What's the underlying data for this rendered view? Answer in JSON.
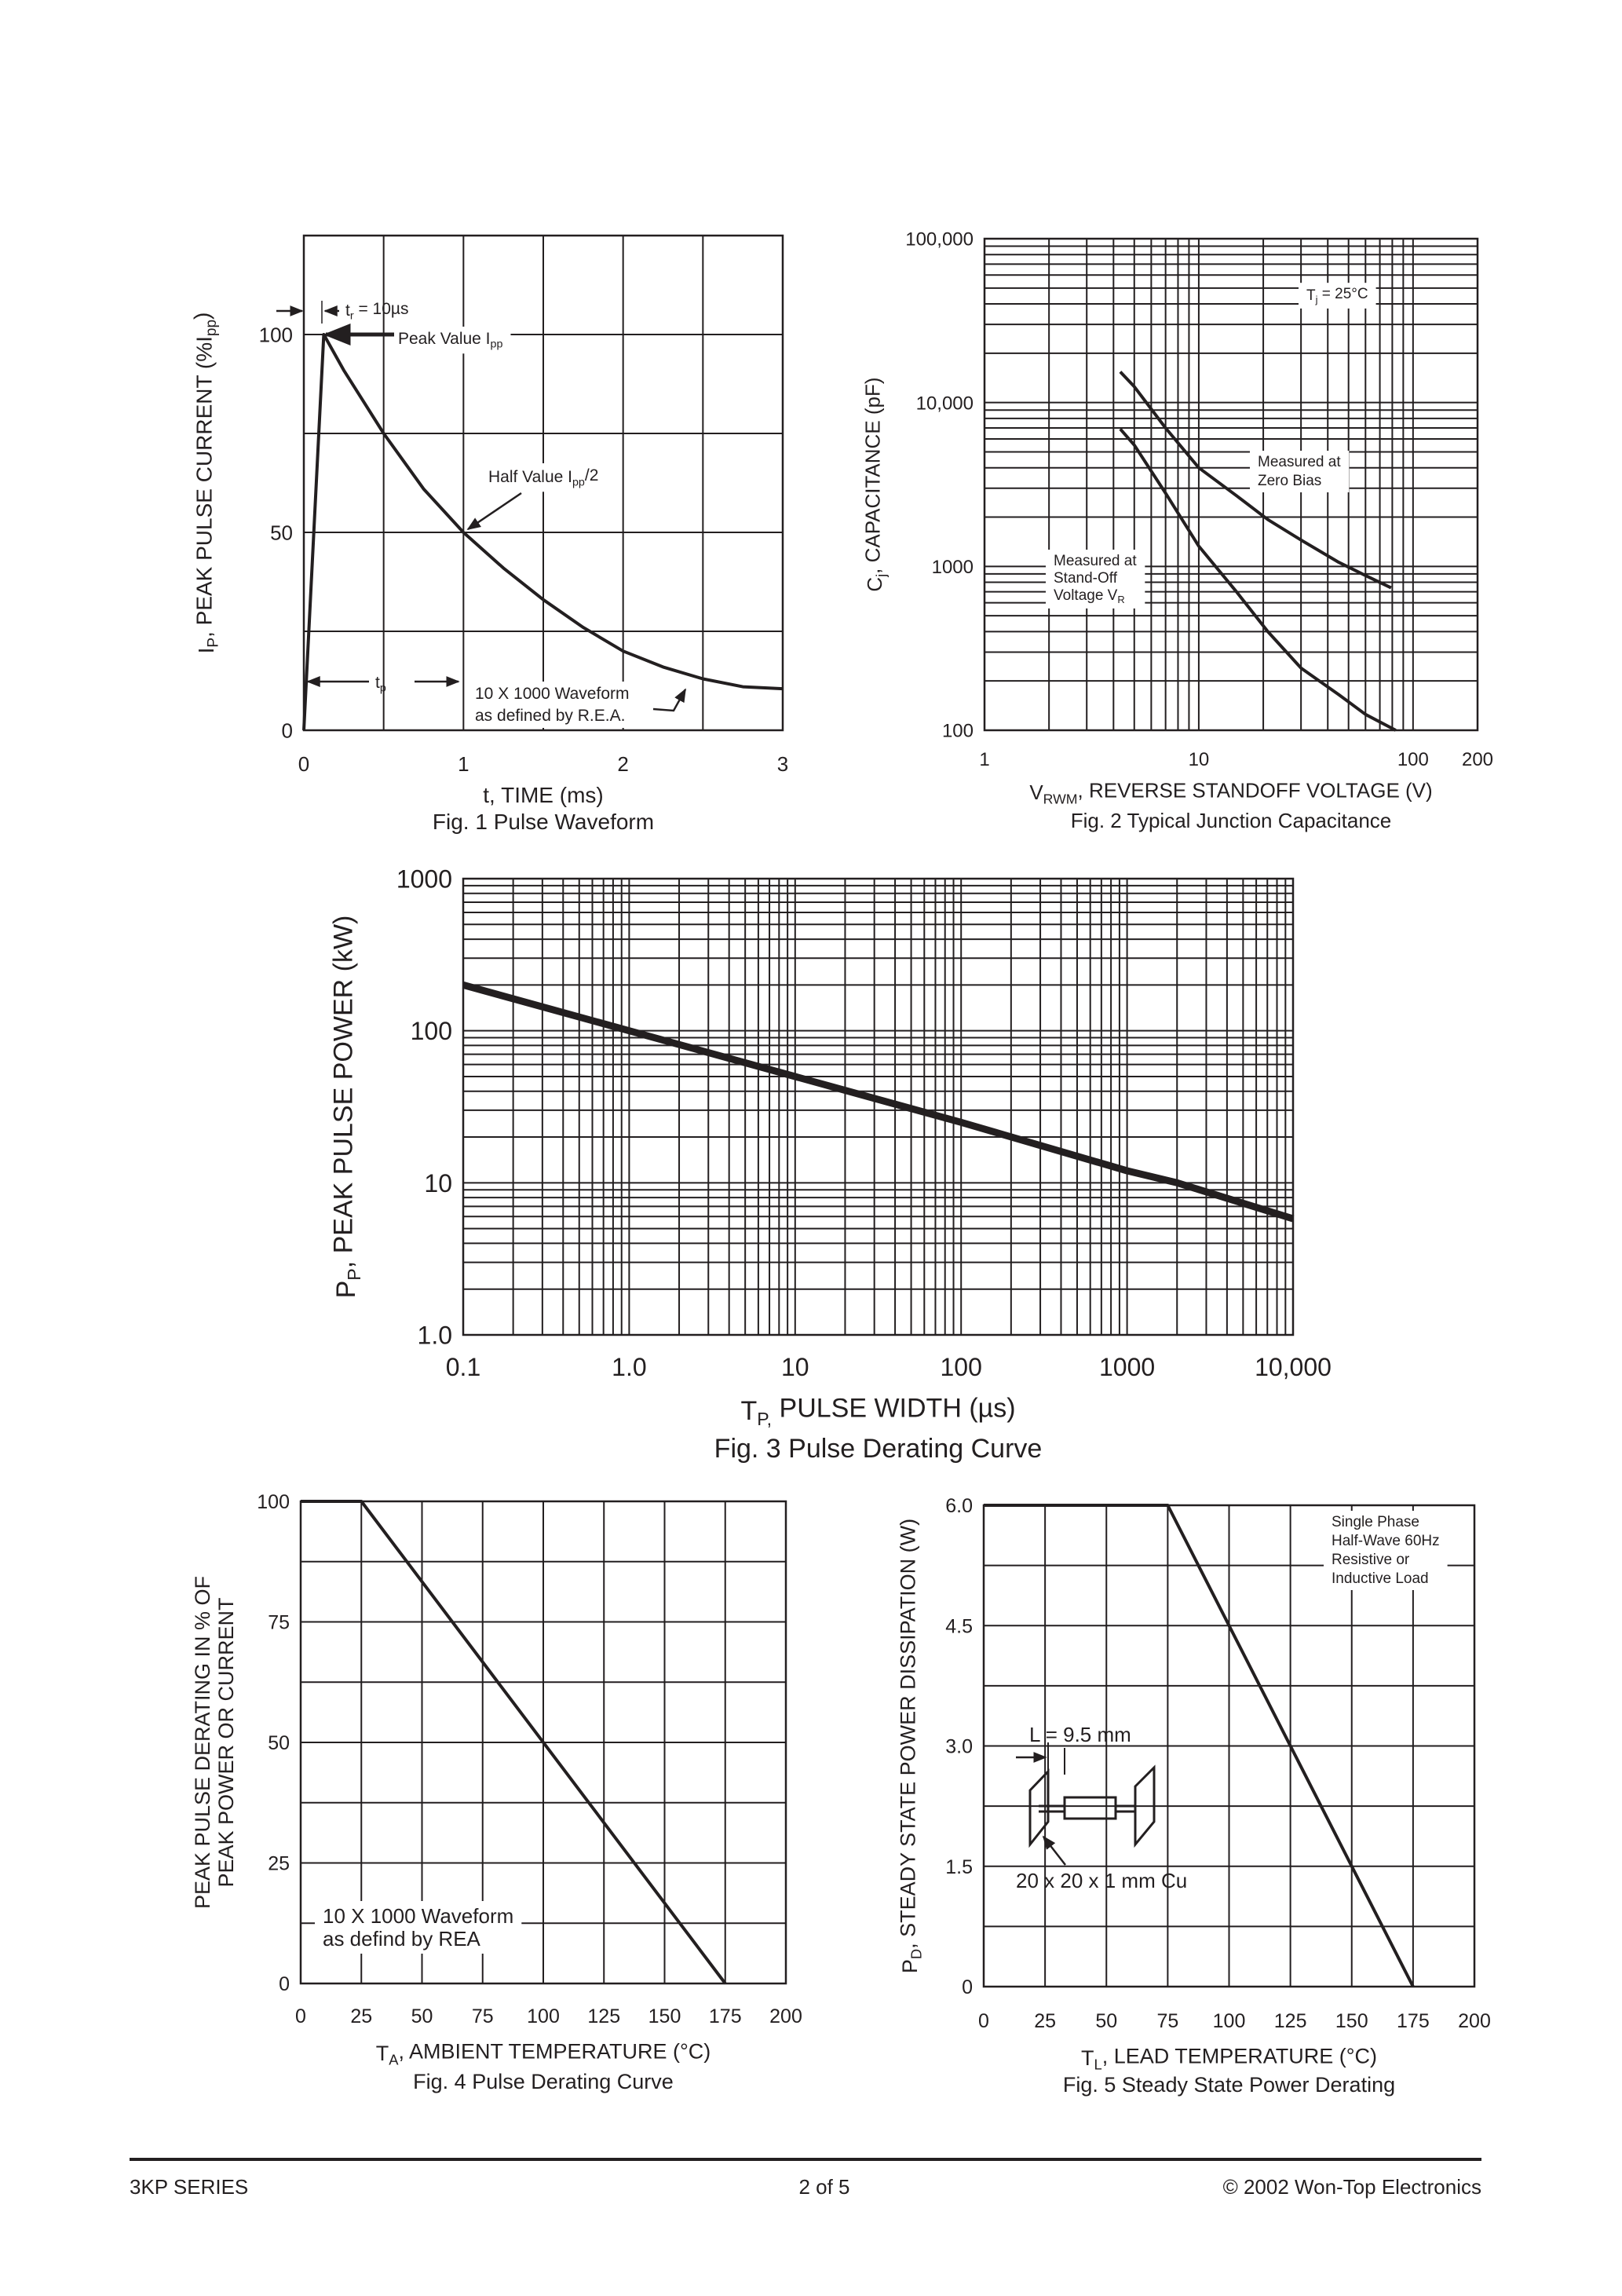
{
  "footer": {
    "series": "3KP SERIES",
    "page": "2  of  5",
    "copyright": "© 2002 Won-Top Electronics"
  },
  "colors": {
    "ink": "#231f20",
    "background": "#ffffff"
  },
  "chart_data": [
    {
      "id": "fig1",
      "type": "line",
      "caption": "Fig. 1  Pulse Waveform",
      "xlabel": [
        {
          "t": "t, TIME (ms)"
        }
      ],
      "ylabel": [
        [
          {
            "t": "I"
          },
          {
            "t": "P",
            "sub": true
          },
          {
            "t": ", PEAK PULSE CURRENT (%I"
          },
          {
            "t": "pp",
            "sub": true
          },
          {
            "t": ")"
          }
        ]
      ],
      "xscale": "linear",
      "yscale": "linear",
      "xlim": [
        0,
        3
      ],
      "ylim": [
        0,
        125
      ],
      "grid": true,
      "x_grid_step": 0.5,
      "y_grid_step": 25,
      "xticks": [
        0,
        1,
        2,
        3
      ],
      "xtick_labels": [
        "0",
        "1",
        "2",
        "3"
      ],
      "yticks": [
        0,
        50,
        100
      ],
      "ytick_labels": [
        "0",
        "50",
        "100"
      ],
      "series": [
        {
          "points": [
            [
              0,
              0
            ],
            [
              0.125,
              100
            ],
            [
              0.25,
              91
            ],
            [
              0.5,
              75
            ],
            [
              0.75,
              61
            ],
            [
              1,
              50
            ],
            [
              1.25,
              41
            ],
            [
              1.5,
              33
            ],
            [
              1.75,
              26
            ],
            [
              2,
              20
            ],
            [
              2.25,
              16
            ],
            [
              2.5,
              13
            ],
            [
              2.75,
              11
            ],
            [
              3,
              10.5
            ]
          ]
        }
      ],
      "annotations": [
        {
          "id": "tr",
          "lines": [
            [
              {
                "t": "t"
              },
              {
                "t": "r",
                "sub": true
              },
              {
                "t": " = 10µs"
              }
            ]
          ]
        },
        {
          "id": "peak",
          "lines": [
            [
              {
                "t": "Peak Value I"
              },
              {
                "t": "pp",
                "sub": true
              }
            ]
          ]
        },
        {
          "id": "half",
          "lines": [
            [
              {
                "t": "Half Value I"
              },
              {
                "t": "pp",
                "sub": true
              },
              {
                "t": "/2"
              }
            ]
          ]
        },
        {
          "id": "tp",
          "lines": [
            [
              {
                "t": "t"
              },
              {
                "t": "p",
                "sub": true
              }
            ]
          ]
        },
        {
          "id": "waveform",
          "lines": [
            [
              {
                "t": "10 X 1000 Waveform"
              }
            ],
            [
              {
                "t": "as defined by R.E.A."
              }
            ]
          ]
        }
      ]
    },
    {
      "id": "fig2",
      "type": "line",
      "caption": "Fig. 2  Typical Junction Capacitance",
      "xlabel": [
        {
          "t": "V"
        },
        {
          "t": "RWM",
          "sub": true
        },
        {
          "t": ", REVERSE STANDOFF VOLTAGE (V)"
        }
      ],
      "ylabel": [
        [
          {
            "t": "C"
          },
          {
            "t": "j",
            "sub": true
          },
          {
            "t": ", CAPACITANCE (pF)"
          }
        ]
      ],
      "xscale": "log",
      "yscale": "log",
      "xlim": [
        1,
        200
      ],
      "ylim": [
        100,
        100000
      ],
      "grid": true,
      "xticks": [
        1,
        10,
        100,
        200
      ],
      "xtick_labels": [
        "1",
        "10",
        "100",
        "200"
      ],
      "yticks": [
        100,
        1000,
        10000,
        100000
      ],
      "ytick_labels": [
        "100",
        "1000",
        "10,000",
        "100,000"
      ],
      "series": [
        {
          "name": "Measured at Zero Bias",
          "points": [
            [
              4.3,
              15400
            ],
            [
              5,
              12500
            ],
            [
              7,
              7000
            ],
            [
              10,
              4000
            ],
            [
              15,
              2700
            ],
            [
              21,
              1930
            ],
            [
              30,
              1450
            ],
            [
              45,
              1060
            ],
            [
              60,
              880
            ],
            [
              79,
              740
            ]
          ]
        },
        {
          "name": "Measured at Stand-Off Voltage VR",
          "points": [
            [
              4.3,
              6900
            ],
            [
              5,
              5500
            ],
            [
              7,
              2800
            ],
            [
              10,
              1330
            ],
            [
              15,
              700
            ],
            [
              21,
              400
            ],
            [
              30,
              240
            ],
            [
              45,
              165
            ],
            [
              60,
              125
            ],
            [
              83,
              100
            ]
          ]
        }
      ],
      "annotations": [
        {
          "id": "tj",
          "lines": [
            [
              {
                "t": "T"
              },
              {
                "t": "j",
                "sub": true
              },
              {
                "t": " = 25°C"
              }
            ]
          ]
        },
        {
          "id": "zero",
          "lines": [
            [
              {
                "t": "Measured at"
              }
            ],
            [
              {
                "t": "Zero Bias"
              }
            ]
          ]
        },
        {
          "id": "standoff",
          "lines": [
            [
              {
                "t": "Measured at"
              }
            ],
            [
              {
                "t": "Stand-Off"
              }
            ],
            [
              {
                "t": "Voltage V"
              },
              {
                "t": "R",
                "sub": true
              }
            ]
          ]
        }
      ]
    },
    {
      "id": "fig3",
      "type": "line",
      "caption": "Fig. 3  Pulse Derating Curve",
      "xlabel": [
        {
          "t": "T"
        },
        {
          "t": "P,",
          "sub": true
        },
        {
          "t": " PULSE WIDTH (µs)"
        }
      ],
      "ylabel": [
        [
          {
            "t": "P"
          },
          {
            "t": "P",
            "sub": true
          },
          {
            "t": ", PEAK PULSE POWER (kW)"
          }
        ]
      ],
      "xscale": "log",
      "yscale": "log",
      "xlim": [
        0.1,
        10000
      ],
      "ylim": [
        1,
        1000
      ],
      "grid": true,
      "xticks": [
        0.1,
        1,
        10,
        100,
        1000,
        10000
      ],
      "xtick_labels": [
        "0.1",
        "1.0",
        "10",
        "100",
        "1000",
        "10,000"
      ],
      "yticks": [
        1,
        10,
        100,
        1000
      ],
      "ytick_labels": [
        "1.0",
        "10",
        "100",
        "1000"
      ],
      "series": [
        {
          "points": [
            [
              0.1,
              200
            ],
            [
              1,
              100
            ],
            [
              10,
              50
            ],
            [
              100,
              25
            ],
            [
              1000,
              12
            ],
            [
              2000,
              10
            ],
            [
              10000,
              5.8
            ]
          ]
        }
      ],
      "annotations": []
    },
    {
      "id": "fig4",
      "type": "line",
      "caption": "Fig. 4  Pulse Derating Curve",
      "xlabel": [
        {
          "t": "T"
        },
        {
          "t": "A",
          "sub": true
        },
        {
          "t": ", AMBIENT TEMPERATURE (°C)"
        }
      ],
      "ylabel": [
        [
          {
            "t": "PEAK PULSE DERATING IN % OF"
          }
        ],
        [
          {
            "t": "PEAK POWER OR CURRENT"
          }
        ]
      ],
      "xscale": "linear",
      "yscale": "linear",
      "xlim": [
        0,
        200
      ],
      "ylim": [
        0,
        100
      ],
      "grid": true,
      "x_grid_step": 25,
      "y_grid_step": 12.5,
      "xticks": [
        0,
        25,
        50,
        75,
        100,
        125,
        150,
        175,
        200
      ],
      "xtick_labels": [
        "0",
        "25",
        "50",
        "75",
        "100",
        "125",
        "150",
        "175",
        "200"
      ],
      "yticks": [
        0,
        25,
        50,
        75,
        100
      ],
      "ytick_labels": [
        "0",
        "25",
        "50",
        "75",
        "100"
      ],
      "series": [
        {
          "points": [
            [
              0,
              100
            ],
            [
              25,
              100
            ],
            [
              175,
              0
            ]
          ]
        }
      ],
      "annotations": [
        {
          "id": "waveform",
          "lines": [
            [
              {
                "t": "10 X 1000 Waveform"
              }
            ],
            [
              {
                "t": "as defind by REA"
              }
            ]
          ]
        }
      ]
    },
    {
      "id": "fig5",
      "type": "line",
      "caption": "Fig. 5  Steady State Power Derating",
      "xlabel": [
        {
          "t": "T"
        },
        {
          "t": "L",
          "sub": true
        },
        {
          "t": ", LEAD TEMPERATURE (°C)"
        }
      ],
      "ylabel": [
        [
          {
            "t": "P"
          },
          {
            "t": "D",
            "sub": true
          },
          {
            "t": ", STEADY STATE POWER DISSIPATION (W)"
          }
        ]
      ],
      "xscale": "linear",
      "yscale": "linear",
      "xlim": [
        0,
        200
      ],
      "ylim": [
        0,
        6
      ],
      "grid": true,
      "x_grid_step": 25,
      "y_grid_step": 0.75,
      "xticks": [
        0,
        25,
        50,
        75,
        100,
        125,
        150,
        175,
        200
      ],
      "xtick_labels": [
        "0",
        "25",
        "50",
        "75",
        "100",
        "125",
        "150",
        "175",
        "200"
      ],
      "yticks": [
        0,
        1.5,
        3,
        4.5,
        6
      ],
      "ytick_labels": [
        "0",
        "1.5",
        "3.0",
        "4.5",
        "6.0"
      ],
      "series": [
        {
          "points": [
            [
              0,
              6
            ],
            [
              75,
              6
            ],
            [
              175,
              0
            ]
          ]
        }
      ],
      "annotations": [
        {
          "id": "load",
          "lines": [
            [
              {
                "t": "Single Phase"
              }
            ],
            [
              {
                "t": "Half-Wave 60Hz"
              }
            ],
            [
              {
                "t": "Resistive or"
              }
            ],
            [
              {
                "t": "Inductive Load"
              }
            ]
          ]
        },
        {
          "id": "lead",
          "lines": [
            [
              {
                "t": "L = 9.5 mm"
              }
            ]
          ]
        },
        {
          "id": "cu",
          "lines": [
            [
              {
                "t": "20 x 20 x 1 mm Cu"
              }
            ]
          ]
        }
      ]
    }
  ]
}
